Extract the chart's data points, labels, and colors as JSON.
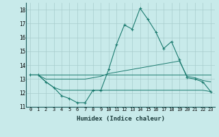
{
  "xlabel": "Humidex (Indice chaleur)",
  "x": [
    0,
    1,
    2,
    3,
    4,
    5,
    6,
    7,
    8,
    9,
    10,
    11,
    12,
    13,
    14,
    15,
    16,
    17,
    18,
    19,
    20,
    21,
    22,
    23
  ],
  "line_main": [
    13.3,
    13.3,
    12.8,
    12.4,
    11.8,
    11.6,
    11.3,
    11.3,
    12.2,
    12.2,
    13.7,
    15.5,
    16.9,
    16.6,
    18.1,
    17.3,
    16.4,
    15.2,
    15.7,
    14.4,
    13.1,
    13.0,
    12.8,
    12.1
  ],
  "line_flat_top": [
    13.3,
    13.3,
    13.3,
    13.3,
    13.3,
    13.3,
    13.3,
    13.3,
    13.3,
    13.3,
    13.3,
    13.3,
    13.3,
    13.3,
    13.3,
    13.3,
    13.3,
    13.3,
    13.3,
    13.3,
    13.3,
    13.3,
    13.3,
    13.3
  ],
  "line_rising": [
    13.3,
    13.3,
    13.0,
    13.0,
    13.0,
    13.0,
    13.0,
    13.0,
    13.1,
    13.2,
    13.4,
    13.5,
    13.6,
    13.7,
    13.8,
    13.9,
    14.0,
    14.1,
    14.2,
    14.3,
    13.2,
    13.1,
    12.9,
    12.8
  ],
  "line_bottom": [
    13.3,
    13.3,
    12.8,
    12.4,
    12.2,
    12.2,
    12.2,
    12.2,
    12.2,
    12.2,
    12.2,
    12.2,
    12.2,
    12.2,
    12.2,
    12.2,
    12.2,
    12.2,
    12.2,
    12.2,
    12.2,
    12.2,
    12.2,
    12.1
  ],
  "ylim": [
    11,
    18.5
  ],
  "xlim": [
    -0.5,
    23.5
  ],
  "yticks": [
    11,
    12,
    13,
    14,
    15,
    16,
    17,
    18
  ],
  "xticks": [
    0,
    1,
    2,
    3,
    4,
    5,
    6,
    7,
    8,
    9,
    10,
    11,
    12,
    13,
    14,
    15,
    16,
    17,
    18,
    19,
    20,
    21,
    22,
    23
  ],
  "line_color": "#1a7a6e",
  "bg_color": "#c8eaea",
  "grid_color": "#a8cccc"
}
